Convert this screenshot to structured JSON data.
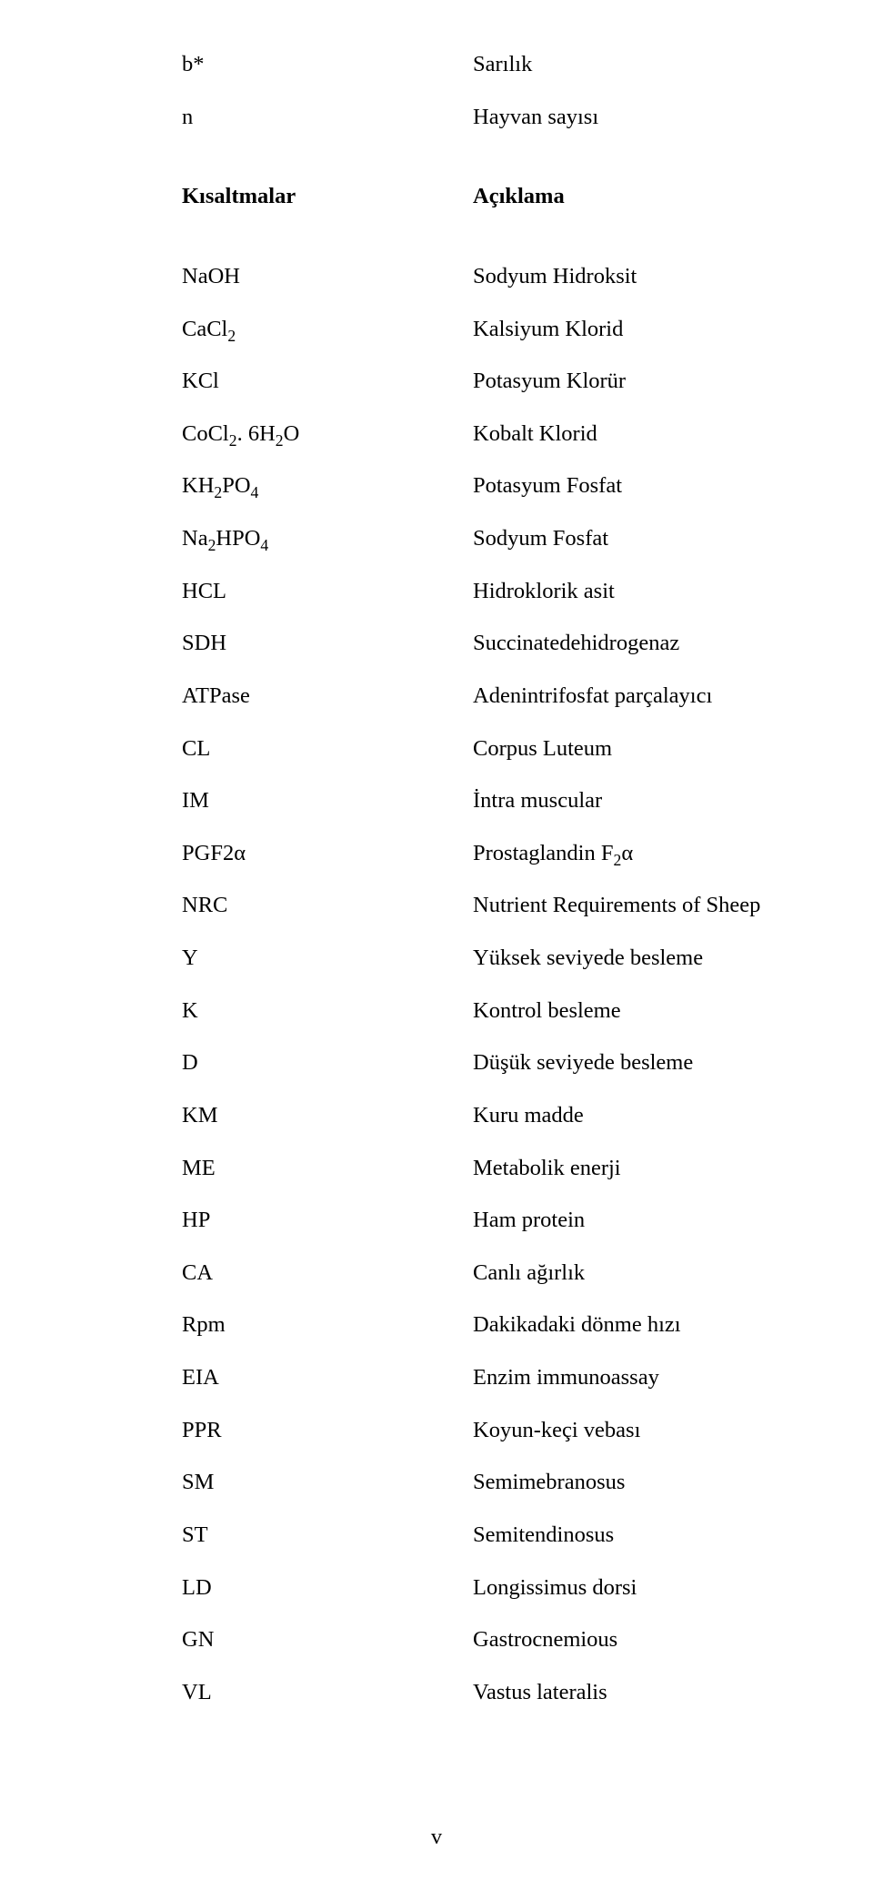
{
  "topRows": [
    {
      "left": "b*",
      "right": "Sarılık"
    },
    {
      "left": "n",
      "right": "Hayvan sayısı"
    }
  ],
  "header": {
    "left": "Kısaltmalar",
    "right": "Açıklama"
  },
  "rows": [
    {
      "leftKey": "NaOH",
      "right": "Sodyum Hidroksit"
    },
    {
      "leftKey": "CaCl2",
      "right": "Kalsiyum Klorid"
    },
    {
      "leftKey": "KCl",
      "right": "Potasyum Klorür"
    },
    {
      "leftKey": "CoCl2_6H2O",
      "right": "Kobalt Klorid"
    },
    {
      "leftKey": "KH2PO4",
      "right": "Potasyum Fosfat"
    },
    {
      "leftKey": "Na2HPO4",
      "right": "Sodyum Fosfat"
    },
    {
      "leftKey": "HCL",
      "right": "Hidroklorik asit"
    },
    {
      "leftKey": "SDH",
      "right": "Succinatedehidrogenaz"
    },
    {
      "leftKey": "ATPase",
      "right": "Adenintrifosfat parçalayıcı"
    },
    {
      "leftKey": "CL",
      "right": "Corpus Luteum"
    },
    {
      "leftKey": "IM",
      "right": "İntra muscular"
    },
    {
      "leftKey": "PGF2a",
      "rightKey": "ProstaglandinF2a"
    },
    {
      "leftKey": "NRC",
      "right": "Nutrient Requirements of Sheep"
    },
    {
      "leftKey": "Y",
      "right": "Yüksek seviyede besleme"
    },
    {
      "leftKey": "K",
      "right": "Kontrol besleme"
    },
    {
      "leftKey": "D",
      "right": "Düşük seviyede besleme"
    },
    {
      "leftKey": "KM",
      "right": "Kuru madde"
    },
    {
      "leftKey": "ME",
      "right": "Metabolik enerji"
    },
    {
      "leftKey": "HP",
      "right": "Ham protein"
    },
    {
      "leftKey": "CA",
      "right": "Canlı ağırlık"
    },
    {
      "leftKey": "Rpm",
      "right": "Dakikadaki dönme hızı"
    },
    {
      "leftKey": "EIA",
      "right": "Enzim immunoassay"
    },
    {
      "leftKey": "PPR",
      "right": "Koyun-keçi vebası"
    },
    {
      "leftKey": "SM",
      "right": "Semimebranosus"
    },
    {
      "leftKey": "ST",
      "right": "Semitendinosus"
    },
    {
      "leftKey": "LD",
      "right": "Longissimus dorsi"
    },
    {
      "leftKey": "GN",
      "right": "Gastrocnemious"
    },
    {
      "leftKey": "VL",
      "right": "Vastus lateralis"
    }
  ],
  "labels": {
    "NaOH": "NaOH",
    "CaCl2": "CaCl<sub>2</sub>",
    "KCl": "KCl",
    "CoCl2_6H2O": "CoCl<sub>2</sub>. 6H<sub>2</sub>O",
    "KH2PO4": "KH<sub>2</sub>PO<sub>4</sub>",
    "Na2HPO4": "Na<sub>2</sub>HPO<sub>4</sub>",
    "HCL": "HCL",
    "SDH": "SDH",
    "ATPase": "ATPase",
    "CL": "CL",
    "IM": "IM",
    "PGF2a": "PGF2α",
    "NRC": "NRC",
    "Y": "Y",
    "K": "K",
    "D": "D",
    "KM": "KM",
    "ME": "ME",
    "HP": "HP",
    "CA": "CA",
    "Rpm": "Rpm",
    "EIA": "EIA",
    "PPR": "PPR",
    "SM": "SM",
    "ST": "ST",
    "LD": "LD",
    "GN": "GN",
    "VL": "VL",
    "ProstaglandinF2a": "Prostaglandin F<sub>2</sub>α"
  },
  "pageNumber": "v"
}
